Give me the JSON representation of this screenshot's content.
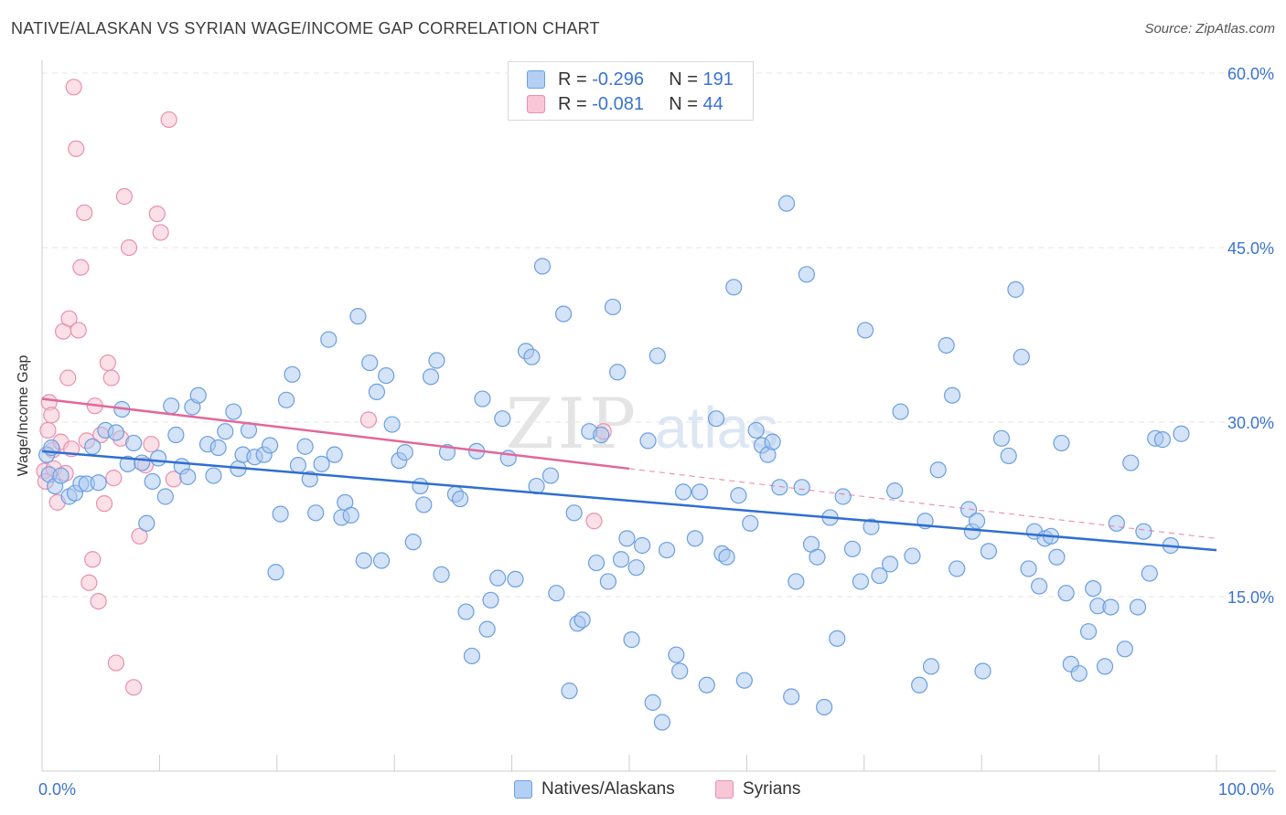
{
  "title": "NATIVE/ALASKAN VS SYRIAN WAGE/INCOME GAP CORRELATION CHART",
  "source": "Source: ZipAtlas.com",
  "watermark": "ZIPatlas",
  "colors": {
    "blue_fill": "#a9c8f0",
    "blue_stroke": "#6a9fe0",
    "blue_line": "#2f6fd1",
    "pink_fill": "#f8c6d6",
    "pink_stroke": "#e890ad",
    "pink_line": "#e2679a",
    "axis_label": "#3b73d1"
  },
  "legend": {
    "r_label": "R =",
    "n_label": "N =",
    "series": [
      {
        "name": "Natives/Alaskans",
        "r": "-0.296",
        "n": "191"
      },
      {
        "name": "Syrians",
        "r": "-0.081",
        "n": "44"
      }
    ]
  },
  "chart_data": {
    "type": "scatter",
    "title": "NATIVE/ALASKAN VS SYRIAN WAGE/INCOME GAP CORRELATION CHART",
    "xlabel": "",
    "ylabel": "Wage/Income Gap",
    "xlim": [
      0,
      100
    ],
    "ylim": [
      0,
      62
    ],
    "x_tick_labels": [
      "0.0%",
      "100.0%"
    ],
    "y_ticks": [
      15,
      30,
      45,
      60
    ],
    "y_tick_labels": [
      "15.0%",
      "30.0%",
      "45.0%",
      "60.0%"
    ],
    "grid": true,
    "series": [
      {
        "name": "Natives/Alaskans",
        "trend": {
          "x": [
            0,
            100
          ],
          "y": [
            27.5,
            19.0
          ]
        },
        "points": [
          [
            0.4,
            27.2
          ],
          [
            0.6,
            25.5
          ],
          [
            0.8,
            27.8
          ],
          [
            1.1,
            24.5
          ],
          [
            1.6,
            25.4
          ],
          [
            2.3,
            23.6
          ],
          [
            2.8,
            23.9
          ],
          [
            3.3,
            24.7
          ],
          [
            3.8,
            24.7
          ],
          [
            4.3,
            27.9
          ],
          [
            4.8,
            24.8
          ],
          [
            5.4,
            29.3
          ],
          [
            6.3,
            29.1
          ],
          [
            6.8,
            31.1
          ],
          [
            7.3,
            26.4
          ],
          [
            7.8,
            28.2
          ],
          [
            8.5,
            26.5
          ],
          [
            8.9,
            21.3
          ],
          [
            9.4,
            24.9
          ],
          [
            9.9,
            26.9
          ],
          [
            10.5,
            23.6
          ],
          [
            11.0,
            31.4
          ],
          [
            11.4,
            28.9
          ],
          [
            11.9,
            26.2
          ],
          [
            12.4,
            25.3
          ],
          [
            12.8,
            31.3
          ],
          [
            13.3,
            32.3
          ],
          [
            14.1,
            28.1
          ],
          [
            14.6,
            25.4
          ],
          [
            15.0,
            27.8
          ],
          [
            15.6,
            29.2
          ],
          [
            16.3,
            30.9
          ],
          [
            16.7,
            26.0
          ],
          [
            17.1,
            27.2
          ],
          [
            17.6,
            29.3
          ],
          [
            18.1,
            27.0
          ],
          [
            18.9,
            27.2
          ],
          [
            19.4,
            28.0
          ],
          [
            19.9,
            17.1
          ],
          [
            20.3,
            22.1
          ],
          [
            20.8,
            31.9
          ],
          [
            21.3,
            34.1
          ],
          [
            21.8,
            26.3
          ],
          [
            22.4,
            27.9
          ],
          [
            22.8,
            25.1
          ],
          [
            23.3,
            22.2
          ],
          [
            23.8,
            26.4
          ],
          [
            24.4,
            37.1
          ],
          [
            24.9,
            27.2
          ],
          [
            25.5,
            21.8
          ],
          [
            25.8,
            23.1
          ],
          [
            26.3,
            22.0
          ],
          [
            26.9,
            39.1
          ],
          [
            27.4,
            18.1
          ],
          [
            27.9,
            35.1
          ],
          [
            28.5,
            32.6
          ],
          [
            28.9,
            18.1
          ],
          [
            29.3,
            34.0
          ],
          [
            29.8,
            29.8
          ],
          [
            30.4,
            26.7
          ],
          [
            30.9,
            27.4
          ],
          [
            31.6,
            19.7
          ],
          [
            32.2,
            24.5
          ],
          [
            32.5,
            22.9
          ],
          [
            33.1,
            33.9
          ],
          [
            33.6,
            35.3
          ],
          [
            34.0,
            16.9
          ],
          [
            34.5,
            27.4
          ],
          [
            35.2,
            23.8
          ],
          [
            35.6,
            23.4
          ],
          [
            36.1,
            13.7
          ],
          [
            36.6,
            9.9
          ],
          [
            37.0,
            27.5
          ],
          [
            37.5,
            32.0
          ],
          [
            37.9,
            12.2
          ],
          [
            38.2,
            14.7
          ],
          [
            38.8,
            16.6
          ],
          [
            39.2,
            30.3
          ],
          [
            39.7,
            26.9
          ],
          [
            40.3,
            16.5
          ],
          [
            41.2,
            36.1
          ],
          [
            41.7,
            35.6
          ],
          [
            42.1,
            24.5
          ],
          [
            42.6,
            43.4
          ],
          [
            43.3,
            25.4
          ],
          [
            43.8,
            15.3
          ],
          [
            44.4,
            39.3
          ],
          [
            44.9,
            6.9
          ],
          [
            45.3,
            22.2
          ],
          [
            45.6,
            12.7
          ],
          [
            46.0,
            13.0
          ],
          [
            46.6,
            29.2
          ],
          [
            47.2,
            17.9
          ],
          [
            47.6,
            28.9
          ],
          [
            48.2,
            16.3
          ],
          [
            48.6,
            39.9
          ],
          [
            49.0,
            34.3
          ],
          [
            49.3,
            18.2
          ],
          [
            49.8,
            20.0
          ],
          [
            50.2,
            11.3
          ],
          [
            50.6,
            17.5
          ],
          [
            51.1,
            19.4
          ],
          [
            51.6,
            28.4
          ],
          [
            52.0,
            5.9
          ],
          [
            52.4,
            35.7
          ],
          [
            52.8,
            4.2
          ],
          [
            53.2,
            19.0
          ],
          [
            54.0,
            10.0
          ],
          [
            54.3,
            8.6
          ],
          [
            54.6,
            24.0
          ],
          [
            55.6,
            20.0
          ],
          [
            56.0,
            24.0
          ],
          [
            56.6,
            7.4
          ],
          [
            57.4,
            30.3
          ],
          [
            57.9,
            18.7
          ],
          [
            58.3,
            18.4
          ],
          [
            58.9,
            41.6
          ],
          [
            59.3,
            23.7
          ],
          [
            59.8,
            7.8
          ],
          [
            60.3,
            21.3
          ],
          [
            60.8,
            29.3
          ],
          [
            61.3,
            28.0
          ],
          [
            61.8,
            27.2
          ],
          [
            62.2,
            28.3
          ],
          [
            62.8,
            24.4
          ],
          [
            63.4,
            48.8
          ],
          [
            63.8,
            6.4
          ],
          [
            64.2,
            16.3
          ],
          [
            64.7,
            24.4
          ],
          [
            65.1,
            42.7
          ],
          [
            65.5,
            19.5
          ],
          [
            66.0,
            18.4
          ],
          [
            66.6,
            5.5
          ],
          [
            67.1,
            21.8
          ],
          [
            67.7,
            11.4
          ],
          [
            68.2,
            23.6
          ],
          [
            69.0,
            19.1
          ],
          [
            69.7,
            16.3
          ],
          [
            70.1,
            37.9
          ],
          [
            70.6,
            21.0
          ],
          [
            71.3,
            16.8
          ],
          [
            72.2,
            17.8
          ],
          [
            72.6,
            24.1
          ],
          [
            73.1,
            30.9
          ],
          [
            74.1,
            18.5
          ],
          [
            74.7,
            7.4
          ],
          [
            75.2,
            21.5
          ],
          [
            75.7,
            9.0
          ],
          [
            76.3,
            25.9
          ],
          [
            77.0,
            36.6
          ],
          [
            77.5,
            32.3
          ],
          [
            77.9,
            17.4
          ],
          [
            78.9,
            22.5
          ],
          [
            79.2,
            20.6
          ],
          [
            79.6,
            21.5
          ],
          [
            80.1,
            8.6
          ],
          [
            80.6,
            18.9
          ],
          [
            81.7,
            28.6
          ],
          [
            82.3,
            27.1
          ],
          [
            82.9,
            41.4
          ],
          [
            83.4,
            35.6
          ],
          [
            84.0,
            17.4
          ],
          [
            84.5,
            20.6
          ],
          [
            84.9,
            15.9
          ],
          [
            85.4,
            20.0
          ],
          [
            85.9,
            20.2
          ],
          [
            86.4,
            18.4
          ],
          [
            86.8,
            28.2
          ],
          [
            87.2,
            15.3
          ],
          [
            87.6,
            9.2
          ],
          [
            88.3,
            8.4
          ],
          [
            89.1,
            12.0
          ],
          [
            89.5,
            15.7
          ],
          [
            89.9,
            14.2
          ],
          [
            90.5,
            9.0
          ],
          [
            91.0,
            14.1
          ],
          [
            91.5,
            21.3
          ],
          [
            92.2,
            10.5
          ],
          [
            92.7,
            26.5
          ],
          [
            93.3,
            14.1
          ],
          [
            93.8,
            20.6
          ],
          [
            94.3,
            17.0
          ],
          [
            94.8,
            28.6
          ],
          [
            95.4,
            28.5
          ],
          [
            96.1,
            19.4
          ],
          [
            97.0,
            29.0
          ]
        ]
      },
      {
        "name": "Syrians",
        "trend_solid": {
          "x": [
            0,
            50
          ],
          "y": [
            32.0,
            26.0
          ]
        },
        "trend_dashed": {
          "x": [
            50,
            100
          ],
          "y": [
            26.0,
            20.0
          ]
        },
        "points": [
          [
            0.2,
            25.8
          ],
          [
            0.3,
            24.9
          ],
          [
            0.5,
            29.3
          ],
          [
            0.6,
            31.7
          ],
          [
            0.8,
            30.6
          ],
          [
            0.9,
            27.6
          ],
          [
            1.0,
            26.0
          ],
          [
            1.3,
            23.1
          ],
          [
            1.6,
            28.3
          ],
          [
            1.8,
            37.8
          ],
          [
            2.0,
            25.6
          ],
          [
            2.2,
            33.8
          ],
          [
            2.3,
            38.9
          ],
          [
            2.5,
            27.7
          ],
          [
            2.7,
            58.8
          ],
          [
            2.9,
            53.5
          ],
          [
            3.1,
            37.9
          ],
          [
            3.3,
            43.3
          ],
          [
            3.6,
            48.0
          ],
          [
            3.8,
            28.4
          ],
          [
            4.0,
            16.2
          ],
          [
            4.3,
            18.2
          ],
          [
            4.5,
            31.4
          ],
          [
            4.8,
            14.6
          ],
          [
            5.0,
            28.9
          ],
          [
            5.3,
            23.0
          ],
          [
            5.6,
            35.1
          ],
          [
            5.9,
            33.8
          ],
          [
            6.1,
            25.2
          ],
          [
            6.3,
            9.3
          ],
          [
            6.7,
            28.6
          ],
          [
            7.0,
            49.4
          ],
          [
            7.4,
            45.0
          ],
          [
            7.8,
            7.2
          ],
          [
            8.3,
            20.2
          ],
          [
            8.8,
            26.3
          ],
          [
            9.3,
            28.1
          ],
          [
            9.8,
            47.9
          ],
          [
            10.1,
            46.3
          ],
          [
            10.8,
            56.0
          ],
          [
            11.2,
            25.1
          ],
          [
            27.8,
            30.2
          ],
          [
            47.0,
            21.5
          ],
          [
            47.8,
            29.2
          ]
        ]
      }
    ]
  }
}
